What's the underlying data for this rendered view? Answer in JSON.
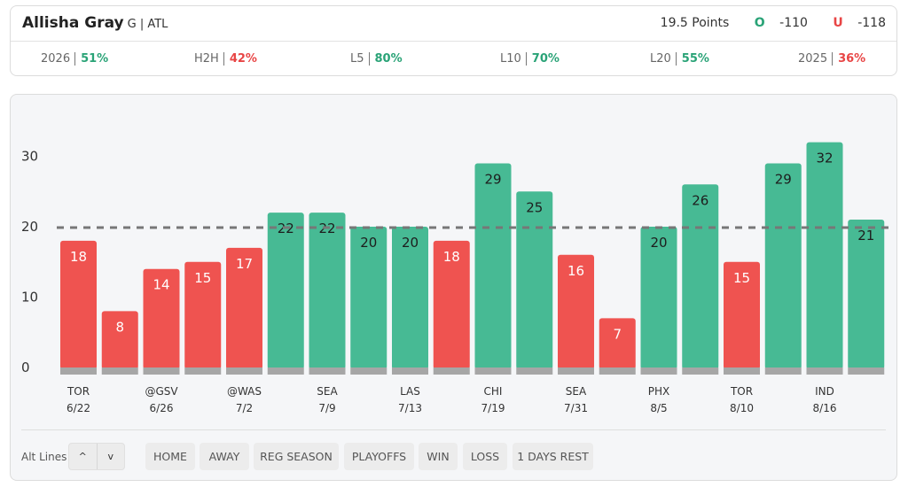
{
  "player": {
    "name": "Allisha Gray",
    "meta": "G | ATL"
  },
  "line": {
    "label": "19.5 Points",
    "over_icon": "O",
    "over_odds": "-110",
    "under_icon": "U",
    "under_odds": "-118"
  },
  "stats": [
    {
      "label": "2026",
      "value": "51%",
      "color": "#2aa377"
    },
    {
      "label": "H2H",
      "value": "42%",
      "color": "#e84545"
    },
    {
      "label": "L5",
      "value": "80%",
      "color": "#2aa377"
    },
    {
      "label": "L10",
      "value": "70%",
      "color": "#2aa377"
    },
    {
      "label": "L20",
      "value": "55%",
      "color": "#2aa377"
    },
    {
      "label": "2025",
      "value": "36%",
      "color": "#e84545"
    }
  ],
  "chart_data": {
    "type": "bar",
    "line_value": 19.5,
    "ylim": [
      0,
      33
    ],
    "yticks": [
      0,
      10,
      20,
      30
    ],
    "values": [
      18,
      8,
      14,
      15,
      17,
      22,
      22,
      20,
      20,
      18,
      29,
      25,
      16,
      7,
      20,
      26,
      15,
      29,
      32,
      21
    ],
    "x_labels": [
      {
        "index": 0,
        "opponent": "TOR",
        "date": "6/22"
      },
      {
        "index": 2,
        "opponent": "@GSV",
        "date": "6/26"
      },
      {
        "index": 4,
        "opponent": "@WAS",
        "date": "7/2"
      },
      {
        "index": 6,
        "opponent": "SEA",
        "date": "7/9"
      },
      {
        "index": 8,
        "opponent": "LAS",
        "date": "7/13"
      },
      {
        "index": 10,
        "opponent": "CHI",
        "date": "7/19"
      },
      {
        "index": 12,
        "opponent": "SEA",
        "date": "7/31"
      },
      {
        "index": 14,
        "opponent": "PHX",
        "date": "8/5"
      },
      {
        "index": 16,
        "opponent": "TOR",
        "date": "8/10"
      },
      {
        "index": 18,
        "opponent": "IND",
        "date": "8/16"
      }
    ],
    "colors": {
      "over": "#47ba94",
      "under": "#ef5350",
      "base": "#a6a6a6",
      "line": "#777777"
    }
  },
  "filters": {
    "alt_lines_label": "Alt Lines",
    "up_icon": "^",
    "down_icon": "v",
    "chips": [
      "HOME",
      "AWAY",
      "REG SEASON",
      "PLAYOFFS",
      "WIN",
      "LOSS",
      "1 DAYS REST"
    ]
  }
}
